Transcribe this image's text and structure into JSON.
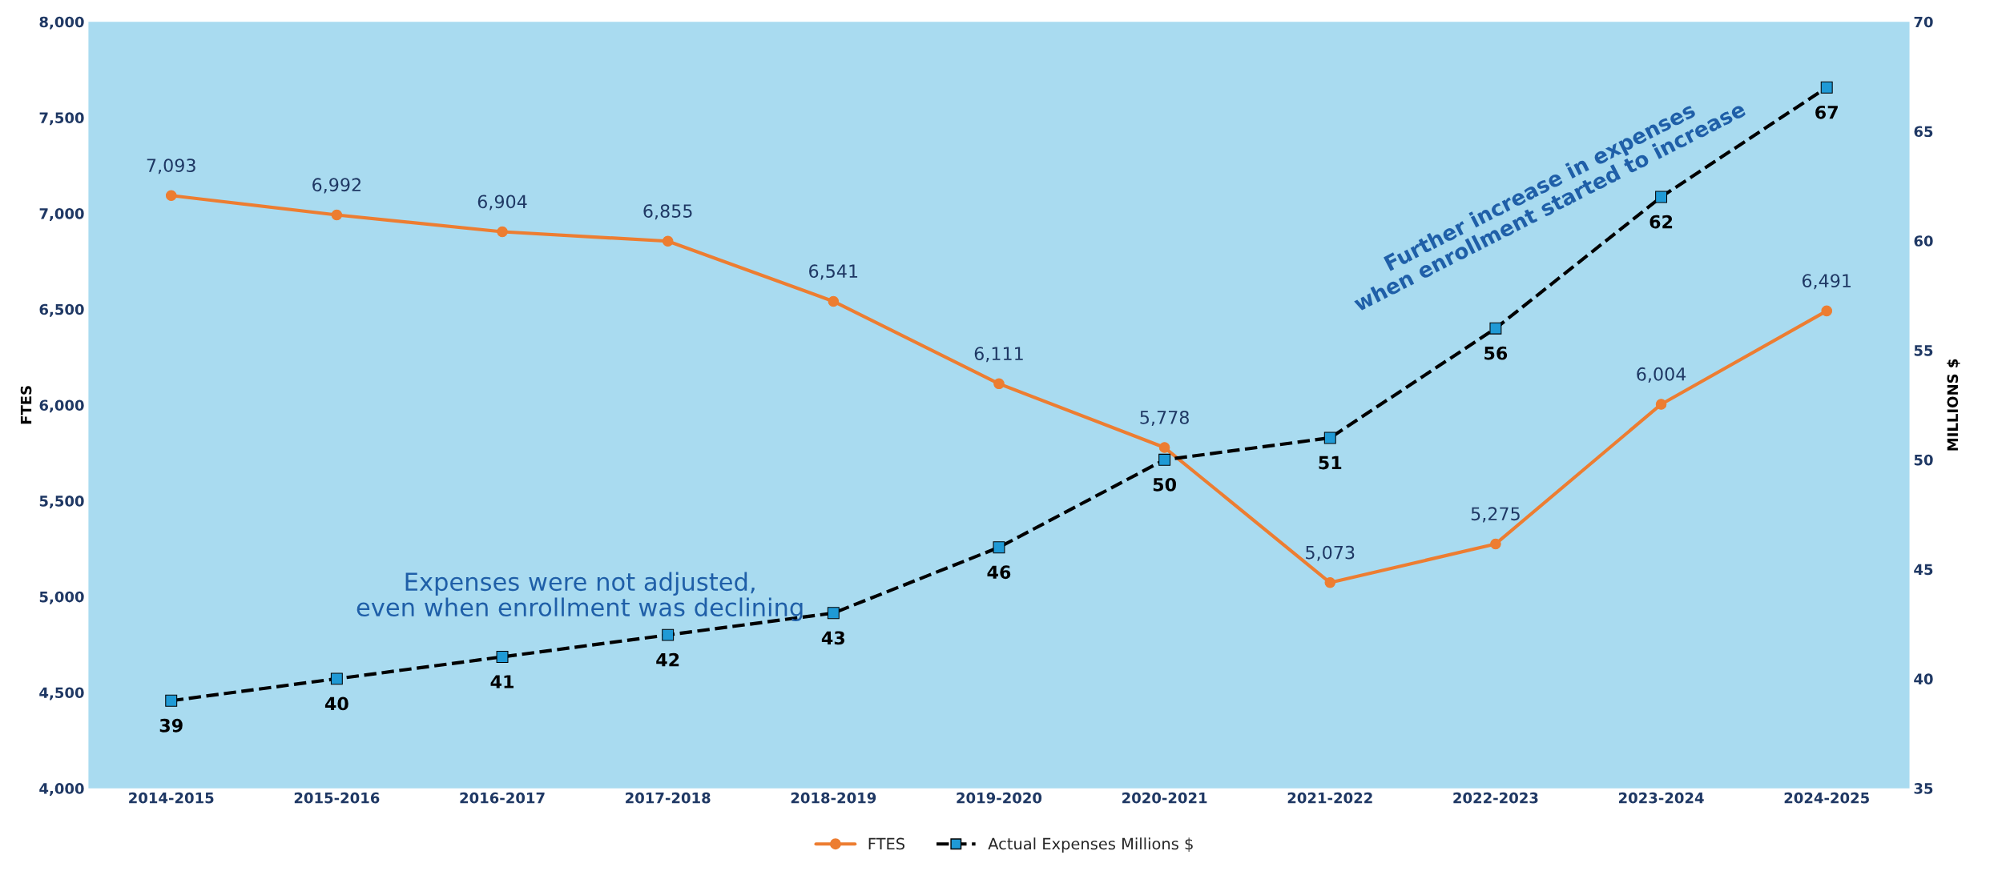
{
  "chart_data": {
    "type": "line",
    "categories": [
      "2014-2015",
      "2015-2016",
      "2016-2017",
      "2017-2018",
      "2018-2019",
      "2019-2020",
      "2020-2021",
      "2021-2022",
      "2022-2023",
      "2023-2024",
      "2024-2025"
    ],
    "series": [
      {
        "name": "FTES",
        "color": "#ed7d31",
        "marker": "circle",
        "line_style": "solid",
        "values": [
          7093,
          6992,
          6904,
          6855,
          6541,
          6111,
          5778,
          5073,
          5275,
          6004,
          6491
        ],
        "value_labels": [
          "7,093",
          "6,992",
          "6,904",
          "6,855",
          "6,541",
          "6,111",
          "5,778",
          "5,073",
          "5,275",
          "6,004",
          "6,491"
        ]
      },
      {
        "name": "Actual Expenses Millions $",
        "color": "#000000",
        "marker": "square",
        "line_style": "dashed",
        "axis": "y2",
        "values": [
          39,
          40,
          41,
          42,
          43,
          46,
          50,
          51,
          56,
          62,
          67
        ]
      }
    ],
    "ylabel": "FTES",
    "y2label": "MILLIONS $",
    "ylim": [
      4000,
      8000
    ],
    "yticks": [
      {
        "value": 4000,
        "label": "4,000"
      },
      {
        "value": 4500,
        "label": "4,500"
      },
      {
        "value": 5000,
        "label": "5,000"
      },
      {
        "value": 5500,
        "label": "5,500"
      },
      {
        "value": 6000,
        "label": "6,000"
      },
      {
        "value": 6500,
        "label": "6,500"
      },
      {
        "value": 7000,
        "label": "7,000"
      },
      {
        "value": 7500,
        "label": "7,500"
      },
      {
        "value": 8000,
        "label": "8,000"
      }
    ],
    "y2lim": [
      35,
      70
    ],
    "y2ticks": [
      35,
      40,
      45,
      50,
      55,
      60,
      65,
      70
    ],
    "data_labels": true,
    "grid": false,
    "legend": "bottom",
    "annotations": [
      "Expenses were not adjusted,\neven when enrollment was declining",
      "Further increase in expenses\nwhen enrollment started to increase"
    ]
  }
}
